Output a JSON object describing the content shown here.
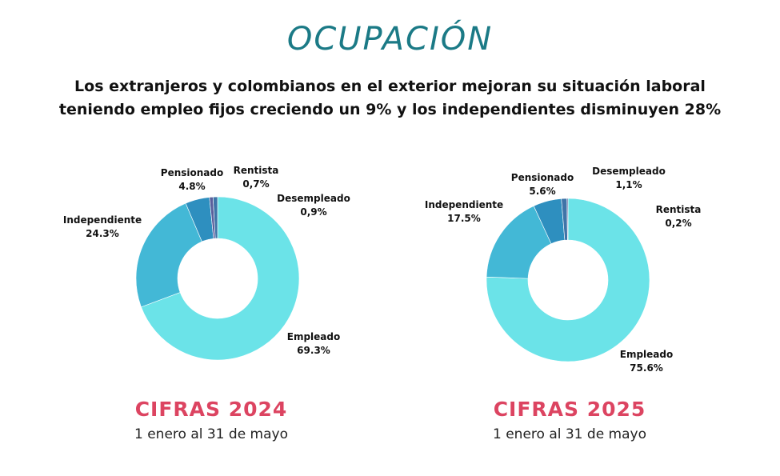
{
  "header": {
    "title": "OCUPACIÓN",
    "subtitle_line1": "Los extranjeros y colombianos en el exterior mejoran su situación laboral",
    "subtitle_line2": "teniendo empleo fijos creciendo un 9% y los independientes disminuyen 28%"
  },
  "colors": {
    "title": "#1b7a86",
    "cifras": "#dc4461",
    "empleado": "#6be3e8",
    "independiente": "#43b8d6",
    "pensionado": "#2e8fbf",
    "desempleado": "#3f74a8",
    "rentista": "#5a5f9c"
  },
  "chart_data": [
    {
      "type": "pie",
      "donut": true,
      "title": "CIFRAS 2024",
      "subtitle": "1 enero al 31 de mayo",
      "slices": [
        {
          "name": "Empleado",
          "value": 69.3,
          "label": "69.3%",
          "color_key": "empleado"
        },
        {
          "name": "Independiente",
          "value": 24.3,
          "label": "24.3%",
          "color_key": "independiente"
        },
        {
          "name": "Pensionado",
          "value": 4.8,
          "label": "4.8%",
          "color_key": "pensionado"
        },
        {
          "name": "Rentista",
          "value": 0.7,
          "label": "0,7%",
          "color_key": "rentista"
        },
        {
          "name": "Desempleado",
          "value": 0.9,
          "label": "0,9%",
          "color_key": "desempleado"
        }
      ]
    },
    {
      "type": "pie",
      "donut": true,
      "title": "CIFRAS 2025",
      "subtitle": "1 enero al 31 de mayo",
      "slices": [
        {
          "name": "Empleado",
          "value": 75.6,
          "label": "75.6%",
          "color_key": "empleado"
        },
        {
          "name": "Independiente",
          "value": 17.5,
          "label": "17.5%",
          "color_key": "independiente"
        },
        {
          "name": "Pensionado",
          "value": 5.6,
          "label": "5.6%",
          "color_key": "pensionado"
        },
        {
          "name": "Desempleado",
          "value": 1.1,
          "label": "1,1%",
          "color_key": "desempleado"
        },
        {
          "name": "Rentista",
          "value": 0.2,
          "label": "0,2%",
          "color_key": "rentista"
        }
      ]
    }
  ]
}
